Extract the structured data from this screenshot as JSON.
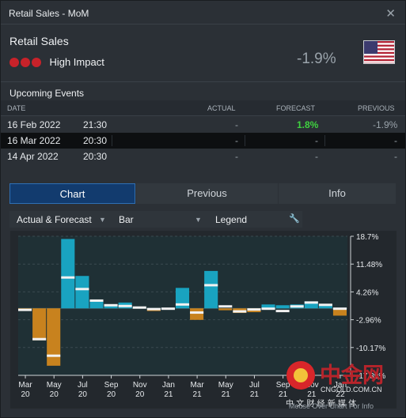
{
  "window": {
    "title": "Retail Sales - MoM",
    "close_glyph": "✕"
  },
  "event": {
    "name": "Retail Sales",
    "impact_label": "High Impact",
    "impact_color": "#c8222a",
    "actual": "-1.9%",
    "flag_icon": "us-flag-icon"
  },
  "upcoming": {
    "title": "Upcoming Events",
    "columns": {
      "date": "DATE",
      "actual": "ACTUAL",
      "forecast": "FORECAST",
      "previous": "PREVIOUS"
    },
    "rows": [
      {
        "date": "16 Feb 2022",
        "time": "21:30",
        "actual": "-",
        "forecast": "1.8%",
        "previous": "-1.9%"
      },
      {
        "date": "16 Mar 2022",
        "time": "20:30",
        "actual": "-",
        "forecast": "-",
        "previous": "-"
      },
      {
        "date": "14 Apr 2022",
        "time": "20:30",
        "actual": "-",
        "forecast": "-",
        "previous": "-"
      }
    ]
  },
  "tabs": [
    {
      "label": "Chart",
      "active": true
    },
    {
      "label": "Previous",
      "active": false
    },
    {
      "label": "Info",
      "active": false
    }
  ],
  "options": {
    "series_select": "Actual & Forecast",
    "type_select": "Bar",
    "legend": "Legend",
    "caret_glyph": "▼",
    "wrench_glyph": "🔧"
  },
  "watermark": {
    "text": "中金网",
    "domain": "CNGOLD.COM.CN",
    "subtitle": "中 文 财 经 新 媒 体",
    "footer": "Mouse Over Chart For Info"
  },
  "chart_data": {
    "type": "bar",
    "y_ticks": [
      "18.7%",
      "11.48%",
      "4.26%",
      "-2.96%",
      "-10.17%",
      "-17.39%"
    ],
    "y_tick_values": [
      18.7,
      11.48,
      4.26,
      -2.96,
      -10.17,
      -17.39
    ],
    "ylim": [
      -17.39,
      18.7
    ],
    "x_ticks": [
      {
        "month": "Mar",
        "year": "20",
        "index": 0
      },
      {
        "month": "May",
        "year": "20",
        "index": 2
      },
      {
        "month": "Jul",
        "year": "20",
        "index": 4
      },
      {
        "month": "Sep",
        "year": "20",
        "index": 6
      },
      {
        "month": "Nov",
        "year": "20",
        "index": 8
      },
      {
        "month": "Jan",
        "year": "21",
        "index": 10
      },
      {
        "month": "Mar",
        "year": "21",
        "index": 12
      },
      {
        "month": "May",
        "year": "21",
        "index": 14
      },
      {
        "month": "Jul",
        "year": "21",
        "index": 16
      },
      {
        "month": "Sep",
        "year": "21",
        "index": 18
      },
      {
        "month": "Nov",
        "year": "21",
        "index": 20
      },
      {
        "month": "Jan",
        "year": "22",
        "index": 22
      }
    ],
    "actual": [
      -0.4,
      -8.3,
      -14.9,
      18.0,
      8.4,
      2.0,
      1.0,
      1.5,
      0.3,
      -0.7,
      0.0,
      5.3,
      -3.0,
      9.7,
      -0.5,
      -1.2,
      -1.0,
      1.0,
      0.8,
      1.0,
      1.8,
      0.7,
      -1.9
    ],
    "forecast": [
      -0.4,
      -8.0,
      -12.3,
      8.0,
      5.0,
      2.0,
      0.8,
      0.6,
      0.2,
      -0.2,
      -0.1,
      1.0,
      -1.1,
      6.0,
      0.5,
      -0.8,
      -0.3,
      -0.1,
      -0.7,
      0.5,
      1.5,
      0.9,
      -0.1
    ],
    "positive_color": "#19a3c0",
    "negative_color": "#c8821e",
    "forecast_color": "#f2f2f2"
  }
}
